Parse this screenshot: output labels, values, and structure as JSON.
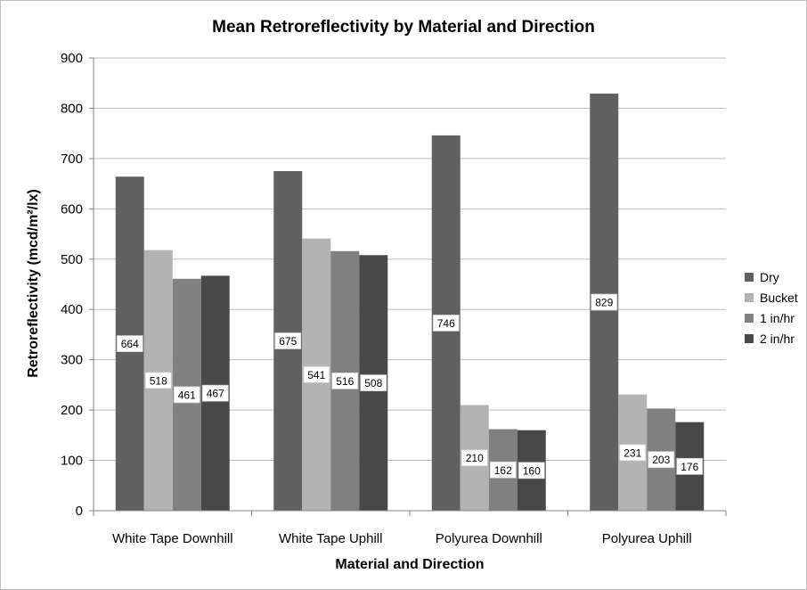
{
  "chart_data": {
    "type": "bar",
    "title": "Mean Retroreflectivity by Material and Direction",
    "xlabel": "Material and Direction",
    "ylabel": "Retroreflectivity (mcd/m²/lx)",
    "categories": [
      "White Tape Downhill",
      "White Tape Uphill",
      "Polyurea Downhill",
      "Polyurea Uphill"
    ],
    "series": [
      {
        "name": "Dry",
        "values": [
          664,
          675,
          746,
          829
        ],
        "color": "#606060"
      },
      {
        "name": "Bucket",
        "values": [
          518,
          541,
          210,
          231
        ],
        "color": "#b3b3b3"
      },
      {
        "name": "1 in/hr",
        "values": [
          461,
          516,
          162,
          203
        ],
        "color": "#808080"
      },
      {
        "name": "2 in/hr",
        "values": [
          467,
          508,
          160,
          176
        ],
        "color": "#484848"
      }
    ],
    "ylim": [
      0,
      900
    ],
    "yticks": [
      0,
      100,
      200,
      300,
      400,
      500,
      600,
      700,
      800,
      900
    ],
    "grid": true,
    "legend_position": "right",
    "data_labels": true
  }
}
